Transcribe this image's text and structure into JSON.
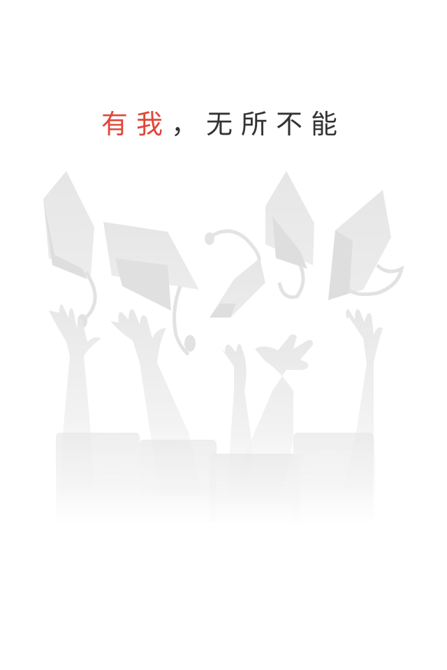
{
  "headline": {
    "accent": "有我",
    "rest": "，无所不能"
  },
  "illustration": {
    "icon": "graduation-caps-and-hands-icon"
  },
  "colors": {
    "accent": "#e0463a",
    "text": "#333333",
    "silhouette": "#e9e9e9",
    "background": "#ffffff"
  }
}
